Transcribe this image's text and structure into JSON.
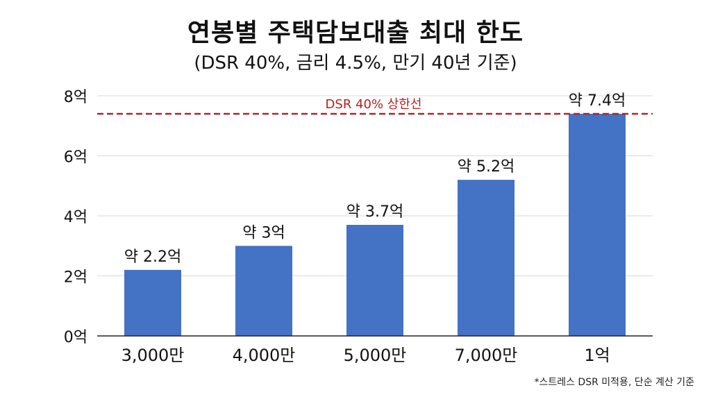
{
  "title": "연봉별 주택담보대출 최대 한도",
  "subtitle": "(DSR 40%, 금리 4.5%, 만기 40년 기준)",
  "footnote": "*스트레스 DSR 미적용, 단순 계산 기준",
  "colors": {
    "bar": "#4472C4",
    "reference_line": "#B22222",
    "grid": "#D9D9D9",
    "axis": "#222222"
  },
  "chart_data": {
    "type": "bar",
    "categories": [
      "3,000만",
      "4,000만",
      "5,000만",
      "7,000만",
      "1억"
    ],
    "values": [
      2.2,
      3,
      3.7,
      5.2,
      7.4
    ],
    "value_labels": [
      "약 2.2억",
      "약 3억",
      "약 3.7억",
      "약 5.2억",
      "약 7.4억"
    ],
    "ylim": [
      0,
      8
    ],
    "yticks": [
      0,
      2,
      4,
      6,
      8
    ],
    "ytick_labels": [
      "0억",
      "2억",
      "4억",
      "6억",
      "8억"
    ],
    "grid": true,
    "reference_line": {
      "value": 7.4,
      "label": "DSR 40% 상한선",
      "style": "dashed"
    }
  }
}
